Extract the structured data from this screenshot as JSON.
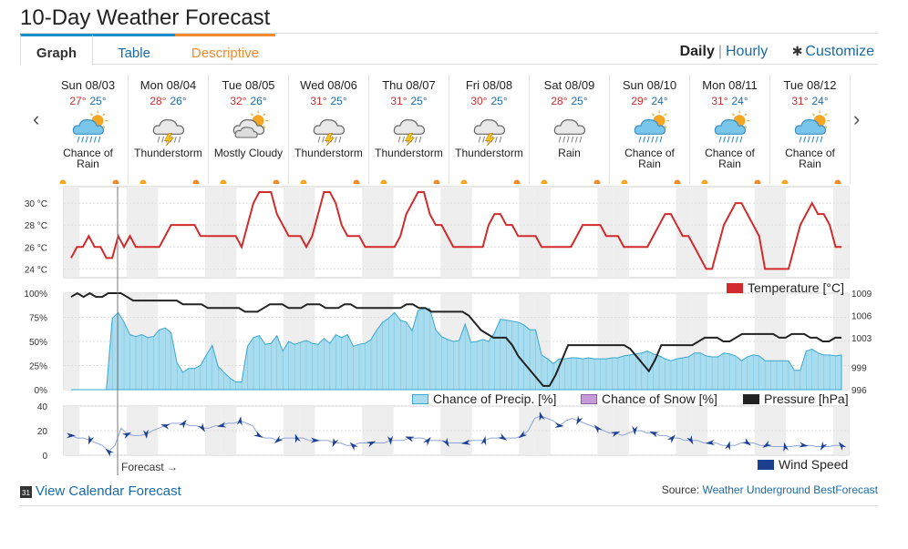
{
  "page": {
    "title": "10-Day Weather Forecast"
  },
  "tabs": [
    {
      "label": "Graph"
    },
    {
      "label": "Table"
    },
    {
      "label": "Descriptive"
    }
  ],
  "nav": {
    "daily": "Daily",
    "separator": "|",
    "hourly": "Hourly",
    "customize": "Customize"
  },
  "days": [
    {
      "date": "Sun 08/03",
      "hi": "27°",
      "lo": "25°",
      "cond_line1": "Chance of",
      "cond_line2": "Rain",
      "icon": "chance-rain-icon"
    },
    {
      "date": "Mon 08/04",
      "hi": "28°",
      "lo": "26°",
      "cond_line1": "Thunderstorm",
      "cond_line2": "",
      "icon": "thunderstorm-icon"
    },
    {
      "date": "Tue 08/05",
      "hi": "32°",
      "lo": "26°",
      "cond_line1": "Mostly Cloudy",
      "cond_line2": "",
      "icon": "mostly-cloudy-icon"
    },
    {
      "date": "Wed 08/06",
      "hi": "31°",
      "lo": "25°",
      "cond_line1": "Thunderstorm",
      "cond_line2": "",
      "icon": "thunderstorm-icon"
    },
    {
      "date": "Thu 08/07",
      "hi": "31°",
      "lo": "25°",
      "cond_line1": "Thunderstorm",
      "cond_line2": "",
      "icon": "thunderstorm-icon"
    },
    {
      "date": "Fri 08/08",
      "hi": "30°",
      "lo": "25°",
      "cond_line1": "Thunderstorm",
      "cond_line2": "",
      "icon": "thunderstorm-icon"
    },
    {
      "date": "Sat 08/09",
      "hi": "28°",
      "lo": "25°",
      "cond_line1": "Rain",
      "cond_line2": "",
      "icon": "rain-icon"
    },
    {
      "date": "Sun 08/10",
      "hi": "29°",
      "lo": "24°",
      "cond_line1": "Chance of",
      "cond_line2": "Rain",
      "icon": "chance-rain-icon"
    },
    {
      "date": "Mon 08/11",
      "hi": "31°",
      "lo": "24°",
      "cond_line1": "Chance of",
      "cond_line2": "Rain",
      "icon": "chance-rain-icon"
    },
    {
      "date": "Tue 08/12",
      "hi": "31°",
      "lo": "24°",
      "cond_line1": "Chance of",
      "cond_line2": "Rain",
      "icon": "chance-rain-icon"
    }
  ],
  "colors": {
    "temperature": "#d12b2b",
    "precip_fill": "#a8dcee",
    "precip_line": "#3aa7d0",
    "snow": "#c79bd9",
    "pressure": "#222222",
    "wind": "#1d3f8f",
    "night_band": "#eeeeee",
    "link": "#1a6aa8",
    "sun": "#f5a623"
  },
  "chart_data": [
    {
      "type": "line",
      "y_tick_labels": [
        "30 °C",
        "28 °C",
        "26 °C",
        "24 °C"
      ],
      "y_ticks": [
        30,
        28,
        26,
        24
      ],
      "ylim": [
        23.2,
        31.5
      ],
      "series": [
        {
          "name": "Temperature [°C]",
          "values": [
            25,
            26,
            26,
            27,
            26,
            26,
            25,
            25,
            27,
            26,
            27,
            26,
            26,
            26,
            26,
            26,
            27,
            28,
            28,
            28,
            28,
            28,
            27,
            27,
            27,
            27,
            27,
            27,
            27,
            26,
            28,
            30,
            31,
            31,
            31,
            29,
            28,
            27,
            27,
            27,
            26,
            27,
            29,
            31,
            31,
            30,
            28,
            27,
            27,
            27,
            26,
            26,
            26,
            26,
            26,
            26,
            27,
            29,
            30,
            31,
            31,
            29,
            28,
            28,
            27,
            26,
            26,
            26,
            26,
            26,
            26,
            28,
            29,
            29,
            28,
            28,
            27,
            27,
            27,
            27,
            26,
            26,
            26,
            26,
            26,
            26,
            27,
            28,
            28,
            28,
            28,
            27,
            27,
            27,
            26,
            26,
            26,
            26,
            26,
            27,
            28,
            29,
            29,
            28,
            27,
            27,
            26,
            25,
            24,
            24,
            26,
            28,
            29,
            30,
            30,
            29,
            28,
            27,
            24,
            24,
            24,
            24,
            24,
            26,
            28,
            29,
            30,
            29,
            29,
            28,
            26,
            26
          ]
        }
      ]
    },
    {
      "type": "area",
      "y_tick_labels": [
        "100%",
        "75%",
        "50%",
        "25%",
        "0%"
      ],
      "y_ticks": [
        100,
        75,
        50,
        25,
        0
      ],
      "ylim": [
        0,
        100
      ],
      "right_tick_labels": [
        "1009",
        "1006",
        "1003",
        "999",
        "996"
      ],
      "right_ticks": [
        1009,
        1006,
        1003,
        999,
        996
      ],
      "right_lim": [
        996,
        1009
      ],
      "series": [
        {
          "name": "Chance of Precip. [%]",
          "values": [
            0,
            0,
            0,
            0,
            0,
            0,
            0,
            74,
            80,
            70,
            57,
            55,
            57,
            54,
            55,
            62,
            64,
            59,
            28,
            18,
            22,
            22,
            25,
            36,
            46,
            24,
            18,
            12,
            8,
            8,
            45,
            54,
            56,
            47,
            48,
            56,
            40,
            50,
            47,
            49,
            51,
            48,
            47,
            53,
            48,
            57,
            54,
            57,
            45,
            47,
            48,
            52,
            62,
            70,
            74,
            80,
            72,
            70,
            61,
            82,
            84,
            84,
            62,
            55,
            52,
            50,
            51,
            68,
            49,
            50,
            52,
            50,
            59,
            73,
            72,
            71,
            70,
            67,
            62,
            62,
            36,
            32,
            27,
            32,
            32,
            33,
            33,
            32,
            33,
            32,
            32,
            32,
            33,
            33,
            35,
            36,
            37,
            38,
            40,
            37,
            35,
            32,
            30,
            32,
            33,
            34,
            38,
            38,
            35,
            34,
            34,
            38,
            37,
            35,
            30,
            34,
            36,
            35,
            30,
            30,
            30,
            30,
            30,
            20,
            20,
            40,
            42,
            38,
            36,
            36,
            35,
            36
          ]
        },
        {
          "name": "Chance of Snow [%]",
          "values": []
        },
        {
          "name": "Pressure [hPa]",
          "axis": "right",
          "values": [
            1008.5,
            1009,
            1008.5,
            1009,
            1008.5,
            1008.5,
            1009,
            1009,
            1009,
            1008.5,
            1008,
            1008,
            1008,
            1008,
            1008,
            1008,
            1008,
            1008,
            1007.5,
            1007.5,
            1007.5,
            1007.5,
            1007,
            1007,
            1007,
            1007,
            1007,
            1007,
            1006.5,
            1006.5,
            1006.5,
            1007,
            1007.5,
            1007.5,
            1007.5,
            1007,
            1007,
            1007,
            1007.5,
            1007.5,
            1007.5,
            1007,
            1007,
            1007,
            1007.5,
            1007.5,
            1007,
            1007,
            1007,
            1007,
            1007,
            1007,
            1007,
            1007,
            1007.5,
            1007.5,
            1007,
            1007,
            1006.5,
            1006.5,
            1006.5,
            1006.5,
            1006.5,
            1006.5,
            1006,
            1005,
            1004,
            1003.5,
            1003,
            1003,
            1003,
            1002,
            1000.5,
            999.5,
            998.5,
            997.5,
            996.5,
            996.5,
            998,
            1000,
            1002,
            1002,
            1002,
            1002,
            1002,
            1002,
            1002,
            1002,
            1002,
            1002,
            1001.5,
            1000.5,
            999.5,
            998.5,
            1000,
            1002,
            1002,
            1002,
            1002,
            1002,
            1002,
            1002.5,
            1003,
            1003,
            1003,
            1002.5,
            1002.5,
            1003,
            1003.5,
            1003.5,
            1003.5,
            1003.5,
            1003.5,
            1003.5,
            1003,
            1003,
            1003.5,
            1003.5,
            1003.5,
            1003,
            1003,
            1002.5,
            1002.5,
            1003,
            1003
          ]
        }
      ]
    },
    {
      "type": "line",
      "y_tick_labels": [
        "40",
        "20",
        "0"
      ],
      "y_ticks": [
        40,
        20,
        0
      ],
      "ylim": [
        0,
        40
      ],
      "series": [
        {
          "name": "Wind Speed",
          "values": [
            16,
            14,
            14,
            12,
            10,
            8,
            3,
            8,
            22,
            17,
            16,
            16,
            17,
            20,
            22,
            24,
            26,
            26,
            26,
            24,
            24,
            22,
            22,
            24,
            24,
            26,
            26,
            28,
            26,
            24,
            16,
            14,
            14,
            12,
            14,
            14,
            14,
            14,
            12,
            12,
            12,
            12,
            10,
            10,
            8,
            8,
            10,
            10,
            10,
            10,
            10,
            12,
            12,
            12,
            14,
            14,
            14,
            12,
            12,
            12,
            10,
            10,
            10,
            10,
            12,
            12,
            12,
            14,
            14,
            14,
            14,
            14,
            16,
            20,
            30,
            32,
            30,
            28,
            24,
            28,
            30,
            28,
            26,
            24,
            22,
            20,
            18,
            18,
            16,
            18,
            20,
            20,
            18,
            18,
            16,
            16,
            14,
            14,
            12,
            12,
            12,
            10,
            10,
            10,
            8,
            8,
            8,
            10,
            10,
            10,
            8,
            8,
            7,
            7,
            7,
            7,
            8,
            8,
            8,
            7,
            7,
            7,
            8,
            8
          ]
        }
      ]
    }
  ],
  "chart_labels": {
    "forecast_marker": "Forecast →"
  },
  "footer": {
    "calendar_link": "View Calendar Forecast",
    "calendar_icon_text": "31",
    "source_prefix": "Source:",
    "source_link": "Weather Underground BestForecast"
  }
}
